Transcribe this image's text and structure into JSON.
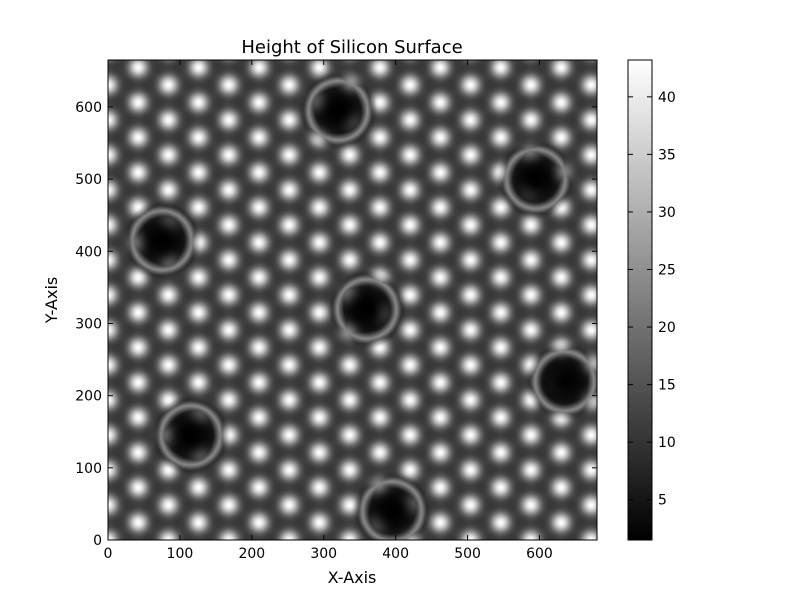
{
  "chart_data": {
    "type": "heatmap",
    "title": "Height of Silicon Surface",
    "xlabel": "X-Axis",
    "ylabel": "Y-Axis",
    "xlim": [
      0,
      680
    ],
    "ylim": [
      0,
      665
    ],
    "xticks": [
      0,
      100,
      200,
      300,
      400,
      500,
      600
    ],
    "yticks": [
      0,
      100,
      200,
      300,
      400,
      500,
      600
    ],
    "colormap": "gray",
    "colorbar": {
      "range": [
        1.5,
        43.2
      ],
      "ticks": [
        5,
        10,
        15,
        20,
        25,
        30,
        35,
        40
      ]
    },
    "surface": {
      "pattern": "hexagonal Si(111) 7x7-like lattice of bright adatoms around dark corner holes",
      "height_range": [
        1.5,
        43.2
      ],
      "corner_holes": [
        [
          320,
          595
        ],
        [
          595,
          500
        ],
        [
          75,
          415
        ],
        [
          360,
          320
        ],
        [
          635,
          220
        ],
        [
          115,
          145
        ],
        [
          395,
          40
        ]
      ]
    }
  }
}
